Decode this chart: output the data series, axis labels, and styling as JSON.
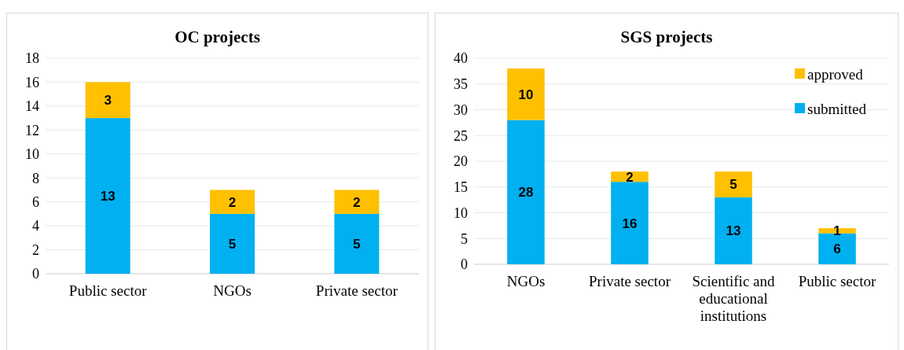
{
  "chart_data": [
    {
      "type": "bar",
      "title": "OC projects",
      "categories": [
        "Public sector",
        "NGOs",
        "Private sector"
      ],
      "stacked": true,
      "data_labels": true,
      "grid": "y",
      "legend": false,
      "ylim": [
        0,
        18
      ],
      "yticks": [
        0,
        2,
        4,
        6,
        8,
        10,
        12,
        14,
        16,
        18
      ],
      "series": [
        {
          "color": "#00b0f0",
          "values": [
            13,
            5,
            5
          ]
        },
        {
          "color": "#ffc000",
          "values": [
            3,
            2,
            2
          ]
        }
      ]
    },
    {
      "type": "bar",
      "title": "SGS projects",
      "categories": [
        "NGOs",
        "Private sector",
        "Scientific and educational institutions",
        "Public sector"
      ],
      "stacked": true,
      "data_labels": true,
      "grid": "y",
      "legend": "top right",
      "ylim": [
        0,
        40
      ],
      "yticks": [
        0,
        5,
        10,
        15,
        20,
        25,
        30,
        35,
        40
      ],
      "series": [
        {
          "name": "submitted",
          "color": "#00b0f0",
          "values": [
            28,
            16,
            13,
            6
          ]
        },
        {
          "name": "approved",
          "color": "#ffc000",
          "values": [
            10,
            2,
            5,
            1
          ]
        }
      ]
    }
  ]
}
